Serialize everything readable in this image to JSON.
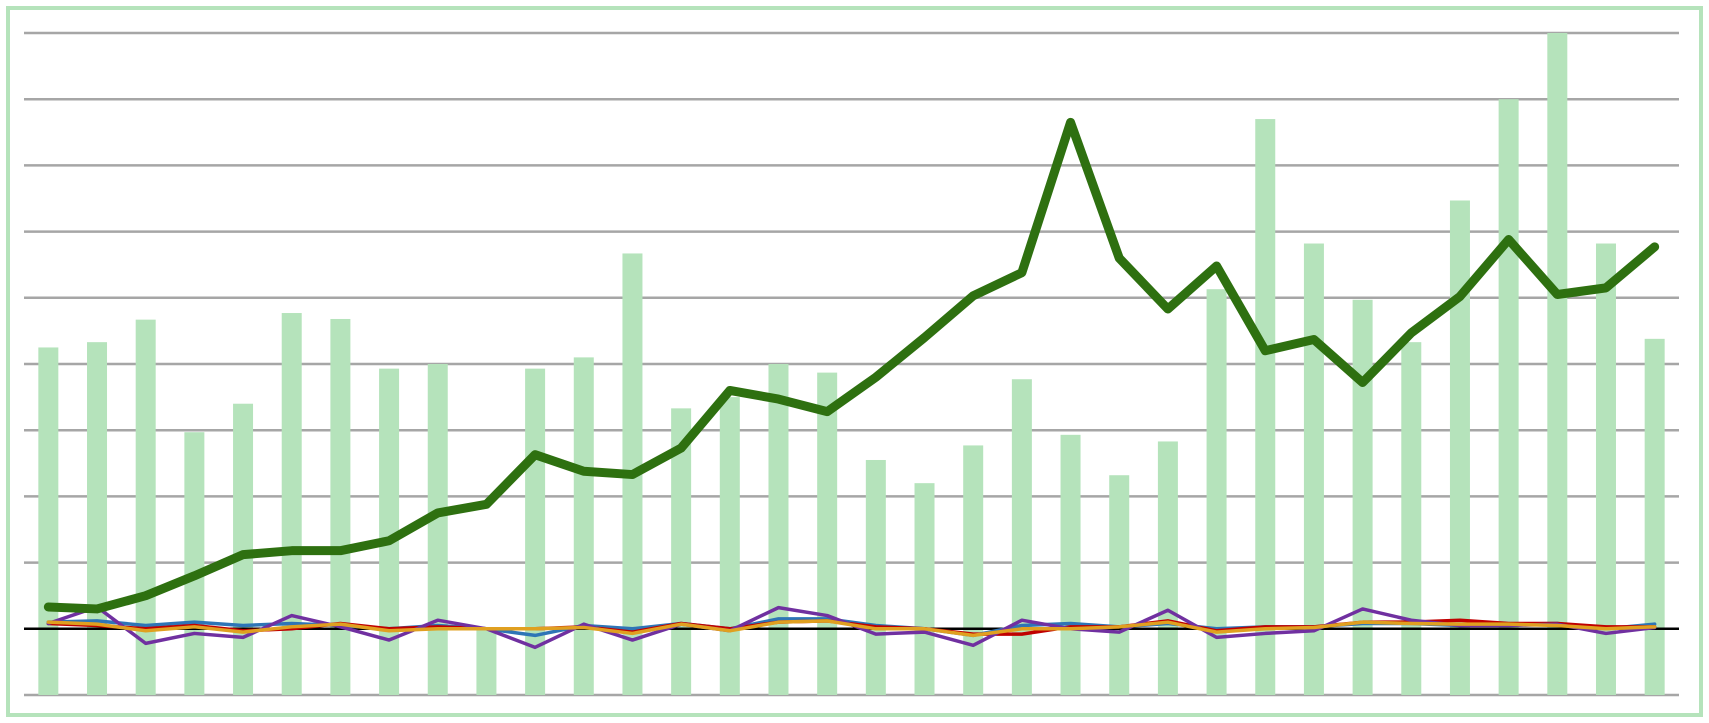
{
  "chart_data": {
    "type": "bar_line",
    "categories": [
      null,
      null,
      null,
      null,
      null,
      null,
      null,
      null,
      null,
      null,
      null,
      null,
      null,
      null,
      null,
      null,
      null,
      null,
      null,
      null,
      null,
      null,
      null,
      null,
      null,
      null,
      null,
      null,
      null,
      null,
      null,
      null,
      null,
      null
    ],
    "ylim": [
      -1,
      9
    ],
    "yticks": [
      -1,
      0,
      1,
      2,
      3,
      4,
      5,
      6,
      7,
      8,
      9
    ],
    "y2lim": [
      0,
      10
    ],
    "grid": true,
    "series": [
      {
        "kind": "bar",
        "axis": "y2",
        "color": "#b5e3bb",
        "values": [
          5.25,
          5.33,
          5.67,
          3.97,
          4.4,
          5.77,
          5.68,
          4.93,
          5.0,
          1.0,
          4.93,
          5.1,
          6.67,
          4.33,
          4.5,
          5.0,
          4.87,
          3.55,
          3.2,
          3.77,
          4.77,
          3.93,
          3.32,
          3.83,
          6.13,
          8.7,
          6.82,
          5.97,
          5.33,
          7.47,
          9.0,
          10.0,
          6.82,
          5.38
        ]
      },
      {
        "kind": "line",
        "color": "#2e7010",
        "width": 9,
        "values": [
          0.33,
          0.3,
          0.5,
          0.8,
          1.12,
          1.18,
          1.18,
          1.33,
          1.75,
          1.88,
          2.63,
          2.38,
          2.33,
          2.73,
          3.6,
          3.47,
          3.28,
          3.8,
          4.4,
          5.03,
          5.38,
          7.65,
          5.6,
          4.83,
          5.48,
          4.2,
          4.37,
          3.72,
          4.47,
          5.02,
          5.88,
          5.05,
          5.15,
          5.77
        ]
      },
      {
        "kind": "line",
        "color": "#2e75b6",
        "width": 3.5,
        "values": [
          0.1,
          0.12,
          0.05,
          0.1,
          0.05,
          0.08,
          0.05,
          0,
          0.05,
          0,
          -0.1,
          0.05,
          0,
          0.08,
          0,
          0.15,
          0.15,
          0.05,
          0,
          -0.1,
          0.05,
          0.08,
          0.03,
          0.08,
          0,
          0.03,
          0.03,
          0.08,
          0.08,
          0.05,
          0.07,
          0.08,
          0,
          0.07
        ]
      },
      {
        "kind": "line",
        "color": "#c00000",
        "width": 3.5,
        "values": [
          0.08,
          0.05,
          0,
          0.05,
          -0.03,
          0,
          0.08,
          0,
          0.03,
          0,
          0,
          0.03,
          -0.05,
          0.08,
          0,
          0.1,
          0.12,
          0.03,
          0,
          -0.08,
          -0.08,
          0.03,
          0.03,
          0.12,
          -0.03,
          0.03,
          0.03,
          0.1,
          0.1,
          0.13,
          0.08,
          0.08,
          0.03,
          0.03
        ]
      },
      {
        "kind": "line",
        "color": "#7030a0",
        "width": 3.5,
        "values": [
          0.08,
          0.33,
          -0.22,
          -0.07,
          -0.13,
          0.2,
          0.03,
          -0.17,
          0.13,
          0,
          -0.28,
          0.07,
          -0.17,
          0.07,
          -0.03,
          0.32,
          0.2,
          -0.08,
          -0.05,
          -0.25,
          0.13,
          0,
          -0.05,
          0.28,
          -0.13,
          -0.07,
          -0.03,
          0.3,
          0.13,
          0.05,
          0.05,
          0.07,
          -0.07,
          0.02
        ]
      },
      {
        "kind": "line",
        "color": "#e0a020",
        "width": 3.5,
        "values": [
          0.1,
          0.07,
          -0.03,
          0.03,
          -0.05,
          0.03,
          0.07,
          -0.03,
          0,
          0,
          0,
          0.02,
          -0.07,
          0.07,
          -0.03,
          0.1,
          0.12,
          0,
          0,
          -0.1,
          0,
          0,
          0.03,
          0.1,
          -0.05,
          0,
          0.02,
          0.1,
          0.08,
          0.07,
          0.07,
          0.05,
          0,
          0.03
        ]
      }
    ]
  }
}
